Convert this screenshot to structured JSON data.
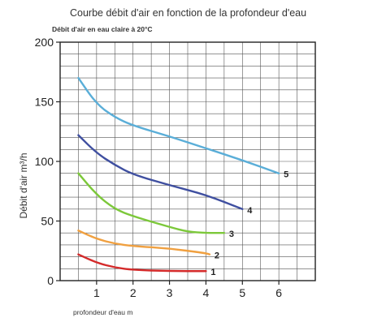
{
  "chart_data": {
    "type": "line",
    "title": "Courbe débit d'air en fonction de la profondeur d'eau",
    "subtitle": "Débit d'air en eau claire à 20°C",
    "xlabel": "profondeur d'eau m",
    "ylabel": "Débit d'air m³/h",
    "xlim": [
      0,
      7.0
    ],
    "ylim": [
      0,
      200
    ],
    "x_ticks": [
      1,
      2,
      3,
      4,
      5,
      6
    ],
    "y_ticks": [
      0,
      50,
      100,
      150,
      200
    ],
    "grid": true,
    "series": [
      {
        "name": "1",
        "color": "#d42a2a",
        "x": [
          0.5,
          1.0,
          1.5,
          2.0,
          3.0,
          4.0
        ],
        "values": [
          22,
          15,
          11,
          9,
          8,
          8
        ]
      },
      {
        "name": "2",
        "color": "#f0a040",
        "x": [
          0.5,
          1.0,
          1.5,
          2.0,
          3.0,
          4.0,
          4.1
        ],
        "values": [
          42,
          35,
          31,
          29,
          27,
          23,
          22
        ]
      },
      {
        "name": "3",
        "color": "#7cc83a",
        "x": [
          0.5,
          1.0,
          1.5,
          2.0,
          3.0,
          3.5,
          4.0,
          4.5
        ],
        "values": [
          90,
          72,
          60,
          54,
          45,
          41,
          40,
          40
        ]
      },
      {
        "name": "4",
        "color": "#3f4fa0",
        "x": [
          0.5,
          1.0,
          1.5,
          2.0,
          3.0,
          4.0,
          5.0
        ],
        "values": [
          122,
          107,
          97,
          89,
          80,
          72,
          60
        ]
      },
      {
        "name": "5",
        "color": "#5aaed8",
        "x": [
          0.5,
          1.0,
          1.5,
          2.0,
          3.0,
          4.0,
          5.0,
          6.0
        ],
        "values": [
          170,
          148,
          137,
          130,
          121,
          111,
          101,
          90
        ]
      }
    ]
  }
}
